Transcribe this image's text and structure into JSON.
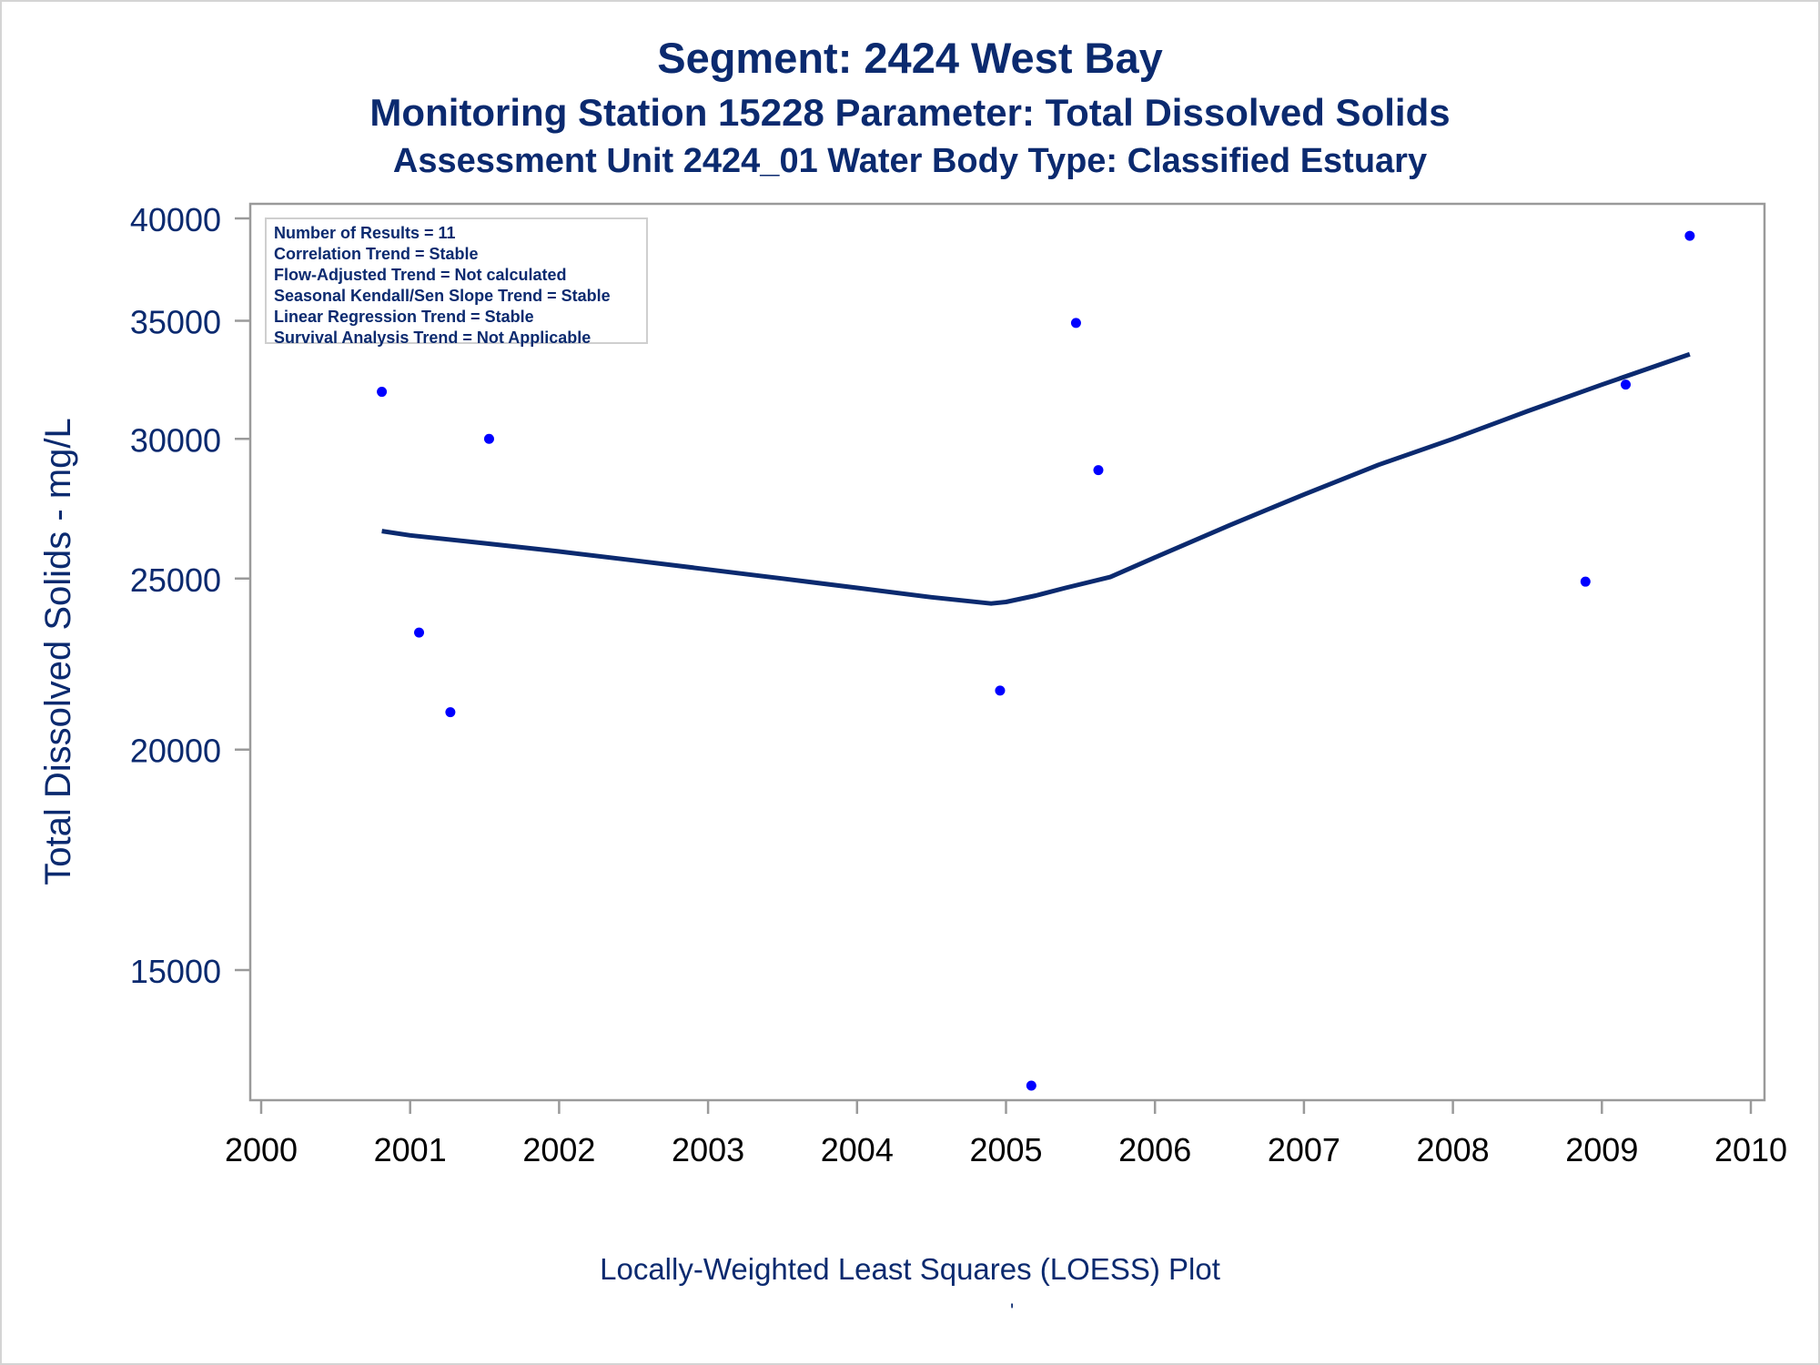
{
  "page": {
    "title_line1": "Segment: 2424  West Bay",
    "title_line2": "Monitoring Station 15228 Parameter: Total Dissolved Solids",
    "title_line3": "Assessment Unit 2424_01   Water Body Type: Classified Estuary",
    "footnote": "Locally-Weighted Least Squares (LOESS) Plot",
    "footnote_mark": "'"
  },
  "stats_box": [
    "Number of Results = 11",
    "Correlation Trend = Stable",
    "Flow-Adjusted Trend = Not calculated",
    "Seasonal Kendall/Sen Slope Trend = Stable",
    "Linear Regression Trend = Stable",
    "Survival Analysis Trend = Not Applicable"
  ],
  "colors": {
    "title": "#0b2a6f",
    "points": "#0000ff",
    "line": "#0b2a6f",
    "axis": "#9a9a9a",
    "tick_text_y": "#0b2a6f",
    "tick_text_x": "#000000"
  },
  "chart_data": {
    "type": "scatter",
    "title": "Segment: 2424  West Bay",
    "xlabel": "",
    "ylabel": "Total Dissolved Solids - mg/L",
    "y_scale": "log",
    "xlim": [
      2000,
      2010
    ],
    "ylim": [
      12900,
      40700
    ],
    "x_ticks": [
      2000,
      2001,
      2002,
      2003,
      2004,
      2005,
      2006,
      2007,
      2008,
      2009,
      2010
    ],
    "y_ticks": [
      15000,
      20000,
      25000,
      30000,
      35000,
      40000
    ],
    "grid": false,
    "series": [
      {
        "mode": "markers",
        "x": [
          2000.81,
          2001.06,
          2001.27,
          2001.53,
          2004.96,
          2005.17,
          2005.47,
          2005.62,
          2008.89,
          2009.16,
          2009.59
        ],
        "y": [
          31900,
          23300,
          21000,
          30000,
          21600,
          12900,
          34900,
          28800,
          24900,
          32200,
          39100
        ]
      },
      {
        "mode": "line",
        "x": [
          2000.81,
          2001.0,
          2001.5,
          2002.0,
          2002.5,
          2003.0,
          2003.5,
          2004.0,
          2004.5,
          2004.9,
          2005.0,
          2005.2,
          2005.4,
          2005.7,
          2006.0,
          2006.5,
          2007.0,
          2007.5,
          2008.0,
          2008.5,
          2009.0,
          2009.59
        ],
        "y": [
          26600,
          26450,
          26180,
          25900,
          25600,
          25300,
          25000,
          24700,
          24400,
          24200,
          24250,
          24450,
          24700,
          25050,
          25700,
          26800,
          27900,
          29000,
          30000,
          31100,
          32200,
          33500
        ]
      }
    ]
  }
}
